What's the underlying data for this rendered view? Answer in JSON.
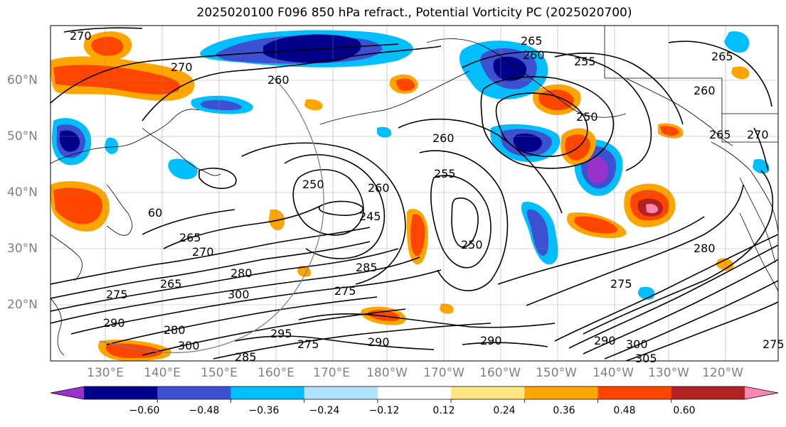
{
  "title": "2025020100 F096 850 hPa refract., Potential Vorticity PC (2025020700)",
  "lat_labels": [
    "60°N",
    "50°N",
    "40°N",
    "30°N",
    "20°N"
  ],
  "lon_labels": [
    "130°E",
    "140°E",
    "150°E",
    "160°E",
    "170°E",
    "180°W",
    "170°W",
    "160°W",
    "150°W",
    "140°W",
    "130°W",
    "120°W"
  ],
  "colorbar": {
    "ticks": [
      "−0.60",
      "−0.48",
      "−0.36",
      "−0.24",
      "−0.12",
      "0.12",
      "0.24",
      "0.36",
      "0.48",
      "0.60"
    ],
    "colors": [
      "#9932cc",
      "#00008b",
      "#3c50d2",
      "#00bfff",
      "#b0e2ff",
      "#ffffff",
      "#ffe680",
      "#ffa500",
      "#ff4500",
      "#b22222",
      "#ff85b3"
    ]
  },
  "contour_labels": [
    {
      "text": "270"
    },
    {
      "text": "270"
    },
    {
      "text": "260"
    },
    {
      "text": "265"
    },
    {
      "text": "260"
    },
    {
      "text": "255"
    },
    {
      "text": "265"
    },
    {
      "text": "260"
    },
    {
      "text": "250"
    },
    {
      "text": "265"
    },
    {
      "text": "270"
    },
    {
      "text": "260"
    },
    {
      "text": "255"
    },
    {
      "text": "250"
    },
    {
      "text": "260"
    },
    {
      "text": "245"
    },
    {
      "text": "250"
    },
    {
      "text": "265"
    },
    {
      "text": "270"
    },
    {
      "text": "280"
    },
    {
      "text": "275"
    },
    {
      "text": "265"
    },
    {
      "text": "285"
    },
    {
      "text": "290"
    },
    {
      "text": "300"
    },
    {
      "text": "295"
    },
    {
      "text": "275"
    },
    {
      "text": "290"
    },
    {
      "text": "275"
    },
    {
      "text": "280"
    },
    {
      "text": "290"
    },
    {
      "text": "300"
    },
    {
      "text": "285"
    },
    {
      "text": "305"
    },
    {
      "text": "280"
    },
    {
      "text": "275"
    },
    {
      "text": "300"
    },
    {
      "text": "275"
    },
    {
      "text": "60"
    },
    {
      "text": "290"
    }
  ]
}
